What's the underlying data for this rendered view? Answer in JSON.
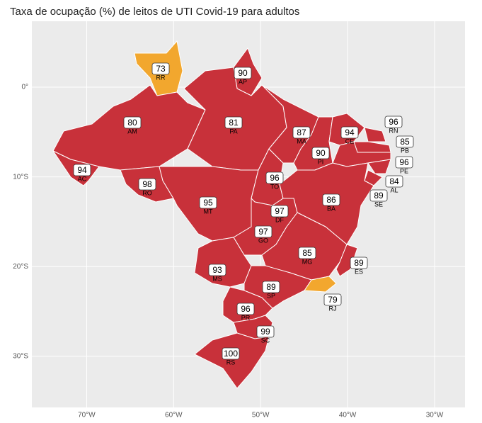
{
  "title": "Taxa de ocupação (%) de leitos de UTI Covid-19 para adultos",
  "map": {
    "xlim": [
      -76.3,
      -26.5
    ],
    "ylim": [
      -35.7,
      7.35
    ],
    "grid": true,
    "xticks": [
      {
        "value": -70,
        "label": "70°W"
      },
      {
        "value": -60,
        "label": "60°W"
      },
      {
        "value": -50,
        "label": "50°W"
      },
      {
        "value": -40,
        "label": "40°W"
      },
      {
        "value": -30,
        "label": "30°W"
      }
    ],
    "yticks": [
      {
        "value": 0,
        "label": "0°"
      },
      {
        "value": -10,
        "label": "10°S"
      },
      {
        "value": -20,
        "label": "20°S"
      },
      {
        "value": -30,
        "label": "30°S"
      }
    ],
    "states": [
      {
        "abbr": "RR",
        "value": 73,
        "color": "#f2a72e"
      },
      {
        "abbr": "AP",
        "value": 90,
        "color": "#c8313a"
      },
      {
        "abbr": "AM",
        "value": 80,
        "color": "#c8313a"
      },
      {
        "abbr": "PA",
        "value": 81,
        "color": "#c8313a"
      },
      {
        "abbr": "AC",
        "value": 94,
        "color": "#c8313a"
      },
      {
        "abbr": "RO",
        "value": 98,
        "color": "#c8313a"
      },
      {
        "abbr": "MT",
        "value": 95,
        "color": "#c8313a"
      },
      {
        "abbr": "TO",
        "value": 96,
        "color": "#c8313a"
      },
      {
        "abbr": "MA",
        "value": 87,
        "color": "#c8313a"
      },
      {
        "abbr": "PI",
        "value": 90,
        "color": "#c8313a"
      },
      {
        "abbr": "CE",
        "value": 94,
        "color": "#c8313a"
      },
      {
        "abbr": "RN",
        "value": 96,
        "color": "#c8313a"
      },
      {
        "abbr": "PB",
        "value": 85,
        "color": "#c8313a"
      },
      {
        "abbr": "PE",
        "value": 96,
        "color": "#c8313a"
      },
      {
        "abbr": "AL",
        "value": 84,
        "color": "#c8313a"
      },
      {
        "abbr": "SE",
        "value": 89,
        "color": "#c8313a"
      },
      {
        "abbr": "BA",
        "value": 86,
        "color": "#c8313a"
      },
      {
        "abbr": "GO",
        "value": 97,
        "color": "#c8313a"
      },
      {
        "abbr": "DF",
        "value": 97,
        "color": "#c8313a"
      },
      {
        "abbr": "MG",
        "value": 85,
        "color": "#c8313a"
      },
      {
        "abbr": "ES",
        "value": 89,
        "color": "#c8313a"
      },
      {
        "abbr": "RJ",
        "value": 79,
        "color": "#f2a72e"
      },
      {
        "abbr": "MS",
        "value": 93,
        "color": "#c8313a"
      },
      {
        "abbr": "SP",
        "value": 89,
        "color": "#c8313a"
      },
      {
        "abbr": "PR",
        "value": 96,
        "color": "#c8313a"
      },
      {
        "abbr": "SC",
        "value": 99,
        "color": "#c8313a"
      },
      {
        "abbr": "RS",
        "value": 100,
        "color": "#c8313a"
      }
    ]
  }
}
